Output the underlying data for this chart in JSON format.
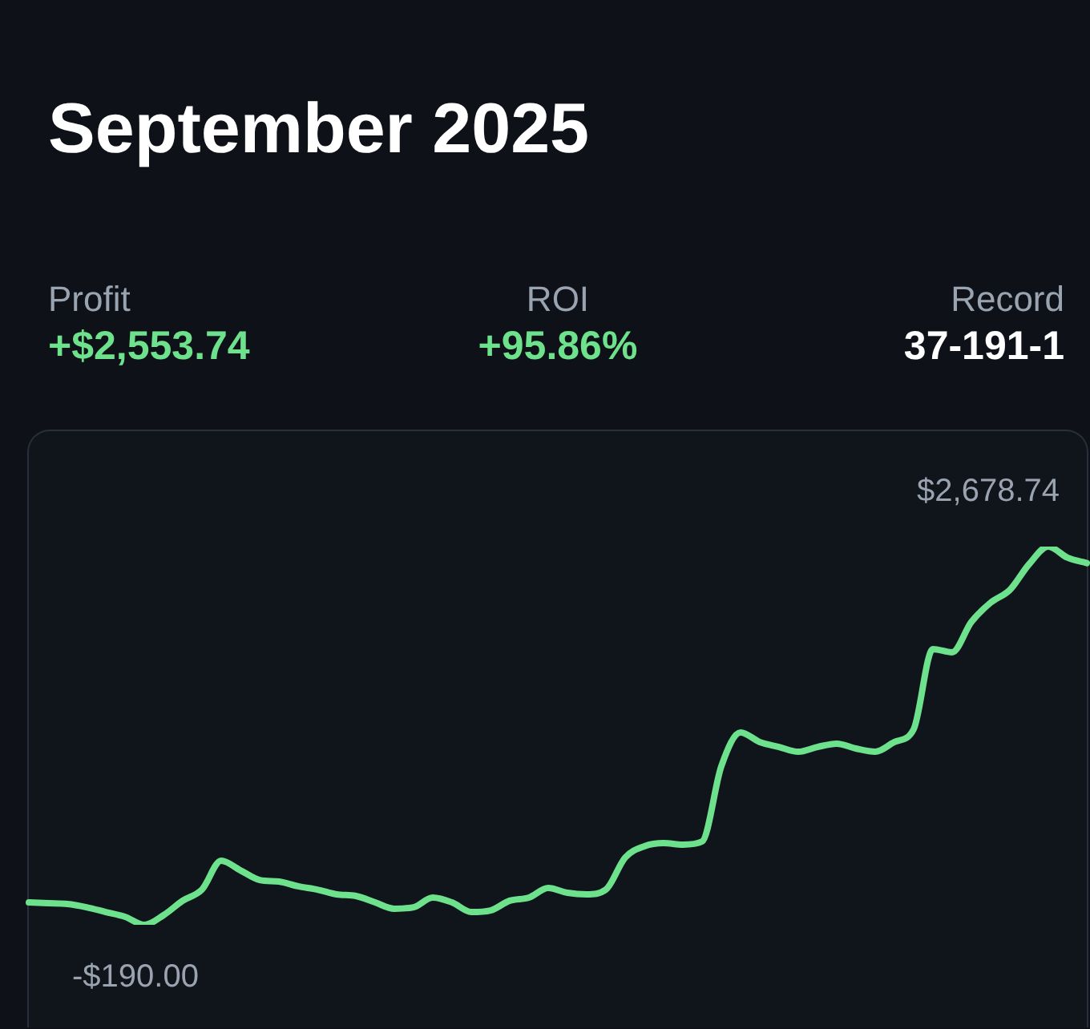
{
  "chart_data": {
    "type": "line",
    "title": "September 2025",
    "annotations": [
      "Profit",
      "+$2,553.74",
      "ROI",
      "+95.86%",
      "Record",
      "37-191-1"
    ],
    "categories": [
      null,
      null,
      null,
      null,
      null,
      null,
      null,
      null,
      null,
      null,
      null,
      null,
      null,
      null,
      null,
      null,
      null,
      null,
      null,
      null,
      null,
      null,
      null,
      null,
      null,
      null,
      null,
      null,
      null,
      null,
      null,
      null,
      null,
      null,
      null,
      null,
      null,
      null,
      null,
      null,
      null,
      null,
      null,
      null,
      null,
      null,
      null,
      null,
      null,
      null,
      null,
      null,
      null,
      null,
      null,
      null
    ],
    "series": [
      {
        "color": "#6ee18c",
        "values": [
          -20,
          -26,
          -32,
          -57,
          -93,
          -129,
          -190,
          -117,
          -7,
          77,
          296,
          223,
          150,
          138,
          102,
          77,
          41,
          29,
          -20,
          -68,
          -57,
          17,
          -20,
          -93,
          -81,
          -7,
          17,
          89,
          53,
          41,
          77,
          320,
          406,
          430,
          418,
          442,
          1013,
          1269,
          1196,
          1159,
          1123,
          1159,
          1184,
          1147,
          1123,
          1196,
          1293,
          1901,
          1877,
          2107,
          2253,
          2350,
          2545,
          2678.74,
          2594,
          2553.74
        ],
        "value_labels": [
          null,
          null,
          null,
          null,
          null,
          null,
          "-$190.00",
          null,
          null,
          null,
          null,
          null,
          null,
          null,
          null,
          null,
          null,
          null,
          null,
          null,
          null,
          null,
          null,
          null,
          null,
          null,
          null,
          null,
          null,
          null,
          null,
          null,
          null,
          null,
          null,
          null,
          null,
          null,
          null,
          null,
          null,
          null,
          null,
          null,
          null,
          null,
          null,
          null,
          null,
          null,
          null,
          null,
          null,
          "$2,678.74",
          null,
          null
        ]
      }
    ],
    "grid": false,
    "legend": false,
    "marker": "none",
    "line_style": "solid"
  }
}
